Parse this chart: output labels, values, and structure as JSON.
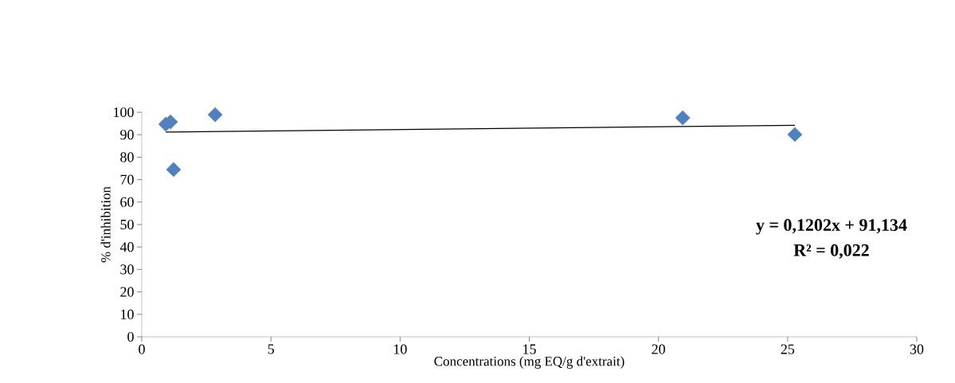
{
  "chart_data": {
    "type": "scatter",
    "xlabel": "Concentrations (mg EQ/g d'extrait)",
    "ylabel": "% d'inhibition",
    "series": [
      {
        "color": "#4f81bd",
        "marker": "diamond",
        "x": [
          0.93,
          1.11,
          1.23,
          2.84,
          20.94,
          25.28
        ],
        "values": [
          94.7,
          95.7,
          74.5,
          98.9,
          97.5,
          90.1
        ]
      },
      {
        "type": "line",
        "color": "#000000",
        "marker": "none",
        "x": [
          0.93,
          25.28
        ],
        "values": [
          91.2,
          94.2
        ]
      }
    ],
    "xlim": [
      0,
      30
    ],
    "ylim": [
      0,
      100
    ],
    "xticks": [
      0,
      5,
      10,
      15,
      20,
      25,
      30
    ],
    "yticks": [
      0,
      10,
      20,
      30,
      40,
      50,
      60,
      70,
      80,
      90,
      100
    ],
    "annotations": [
      "y = 0,1202x + 91,134",
      "R² = 0,022"
    ]
  }
}
